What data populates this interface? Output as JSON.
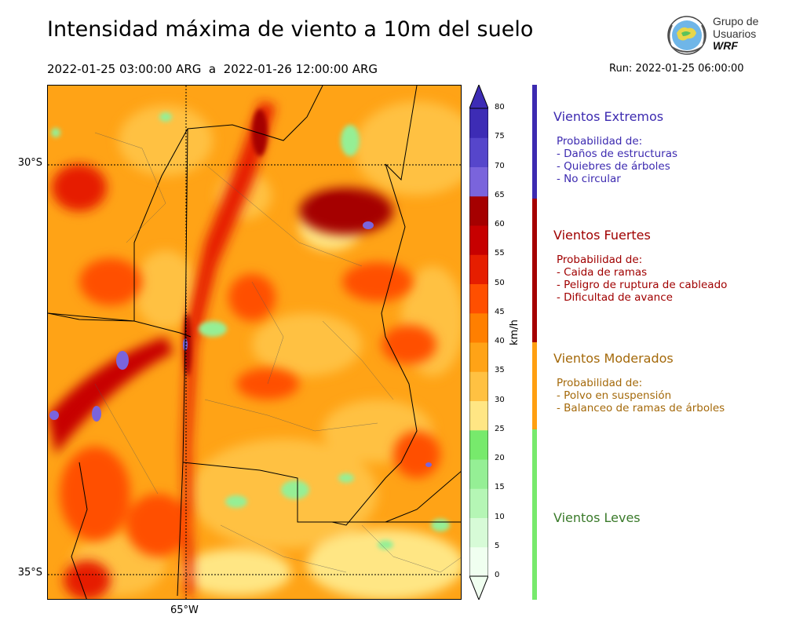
{
  "header": {
    "title": "Intensidad máxima de viento a 10m del suelo",
    "period": "2022-01-25 03:00:00 ARG  a  2022-01-26 12:00:00 ARG",
    "run": "Run: 2022-01-25 06:00:00"
  },
  "logo": {
    "line1": "Grupo de",
    "line2": "Usuarios",
    "line3": "WRF",
    "icon": "globe-emblem-icon"
  },
  "map": {
    "lat_labels": [
      "30°S",
      "35°S"
    ],
    "lon_labels": [
      "65°W"
    ],
    "variable": "max 10m wind speed"
  },
  "colorbar": {
    "unit": "km/h",
    "ticks": [
      "80",
      "75",
      "70",
      "65",
      "60",
      "55",
      "50",
      "45",
      "40",
      "35",
      "30",
      "25",
      "20",
      "15",
      "10",
      "5",
      "0"
    ],
    "colors": [
      "#f0fff0",
      "#d7fbd7",
      "#b5f6b5",
      "#95ef95",
      "#77ea6c",
      "#ffe684",
      "#ffc142",
      "#ffa316",
      "#ff7f00",
      "#ff4f00",
      "#e61e00",
      "#c70000",
      "#a50000",
      "#7a64dc",
      "#5646cb",
      "#3d2cb5"
    ]
  },
  "categories": [
    {
      "name": "Vientos Extremos",
      "color": "#3c2ab0",
      "lines": [
        "Probabilidad de:",
        "- Daños de estructuras",
        "- Quiebres de árboles",
        "- No circular"
      ]
    },
    {
      "name": "Vientos Fuertes",
      "color": "#a00000",
      "lines": [
        "Probabilidad de:",
        "- Caida de ramas",
        "- Peligro de ruptura de cableado",
        "- Dificultad de avance"
      ]
    },
    {
      "name": "Vientos Moderados",
      "color": "#a4690a",
      "lines": [
        "Probabilidad de:",
        "- Polvo en suspensión",
        "- Balanceo de ramas de árboles"
      ]
    },
    {
      "name": "Vientos Leves",
      "color": "#3a7a2a",
      "lines": []
    }
  ],
  "bands": {
    "extreme": "#3c2ab0",
    "strong": "#a50000",
    "moderate": "#ff9f10",
    "light": "#77ea6c"
  }
}
